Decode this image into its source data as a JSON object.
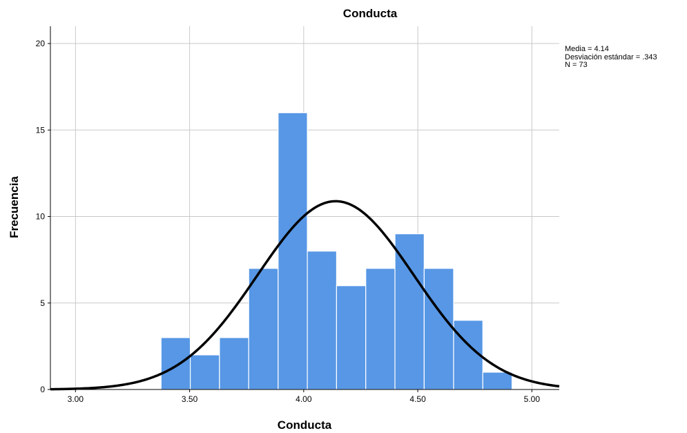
{
  "chart_data": {
    "type": "bar",
    "title": "Conducta",
    "xlabel": "Conducta",
    "ylabel": "Frecuencia",
    "xlim": [
      2.89,
      5.12
    ],
    "ylim": [
      0,
      21
    ],
    "x_ticks": [
      {
        "value": 3.0,
        "label": "3.00"
      },
      {
        "value": 3.5,
        "label": "3.50"
      },
      {
        "value": 4.0,
        "label": "4.00"
      },
      {
        "value": 4.5,
        "label": "4.50"
      },
      {
        "value": 5.0,
        "label": "5.00"
      }
    ],
    "y_ticks": [
      {
        "value": 0,
        "label": "0"
      },
      {
        "value": 5,
        "label": "5"
      },
      {
        "value": 10,
        "label": "10"
      },
      {
        "value": 15,
        "label": "15"
      },
      {
        "value": 20,
        "label": "20"
      }
    ],
    "grid": true,
    "bin_width": 0.1282,
    "bins": [
      {
        "start": 3.375,
        "end": 3.503,
        "count": 3
      },
      {
        "start": 3.503,
        "end": 3.631,
        "count": 2
      },
      {
        "start": 3.631,
        "end": 3.759,
        "count": 3
      },
      {
        "start": 3.759,
        "end": 3.888,
        "count": 7
      },
      {
        "start": 3.888,
        "end": 4.016,
        "count": 16
      },
      {
        "start": 4.016,
        "end": 4.144,
        "count": 8
      },
      {
        "start": 4.144,
        "end": 4.272,
        "count": 6
      },
      {
        "start": 4.272,
        "end": 4.4,
        "count": 7
      },
      {
        "start": 4.4,
        "end": 4.528,
        "count": 9
      },
      {
        "start": 4.528,
        "end": 4.657,
        "count": 7
      },
      {
        "start": 4.657,
        "end": 4.785,
        "count": 4
      },
      {
        "start": 4.785,
        "end": 4.913,
        "count": 1
      }
    ],
    "normal_curve": {
      "mean": 4.14,
      "sd": 0.343,
      "n": 73
    },
    "stats_text": [
      "Media = 4.14",
      "Desviación estándar = .343",
      "N = 73"
    ],
    "colors": {
      "bar_fill": "#5797e5",
      "bar_edge": "#ffffff",
      "curve": "#000000",
      "grid": "#c8c8c8",
      "axis": "#000000"
    }
  }
}
